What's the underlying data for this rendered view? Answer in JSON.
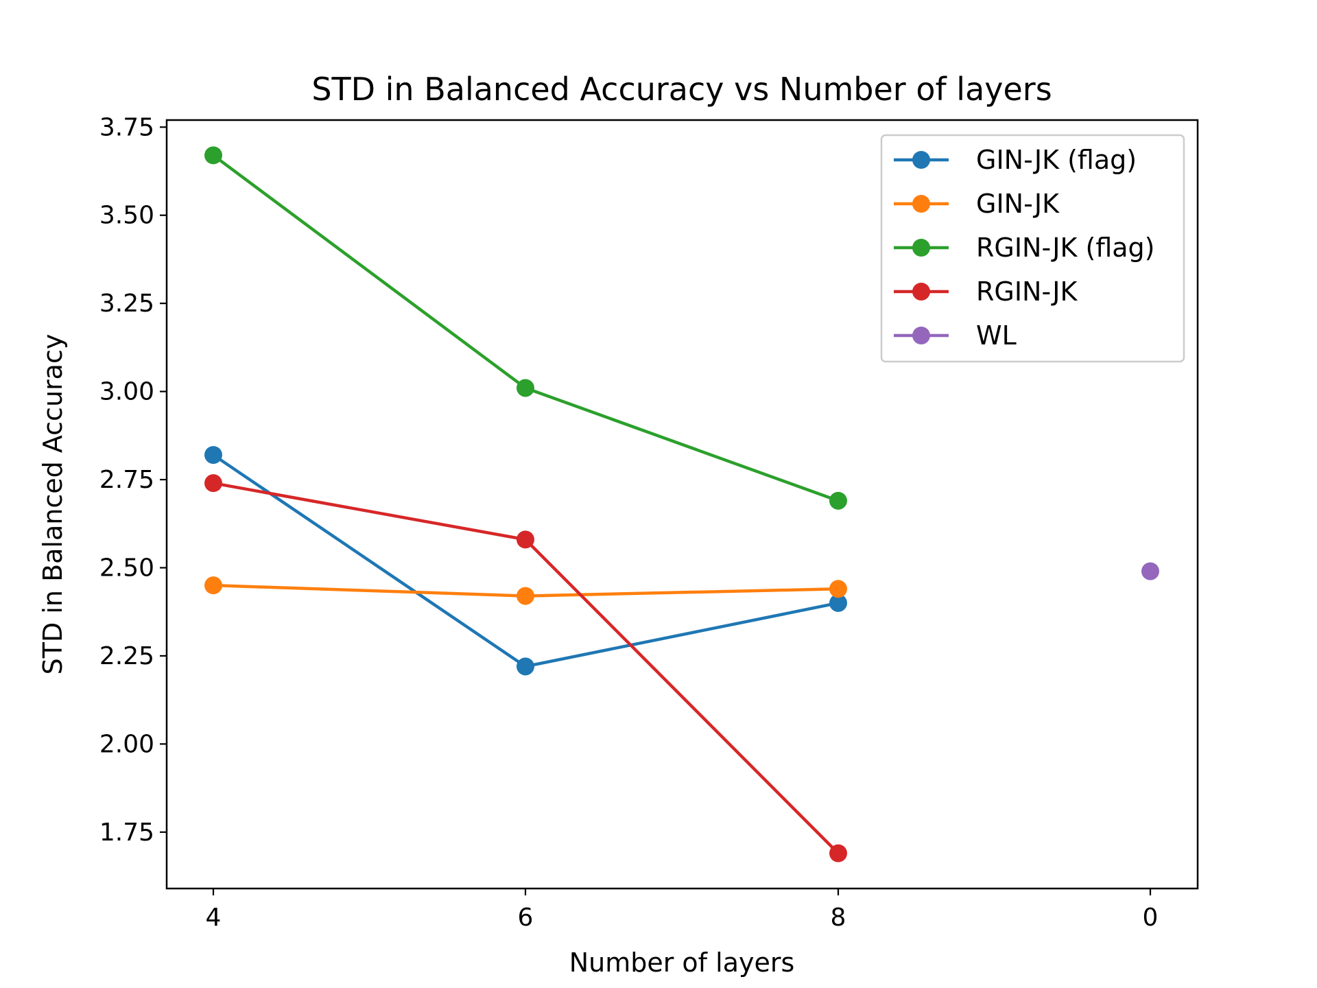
{
  "chart_data": {
    "type": "line",
    "title": "STD in Balanced Accuracy vs Number of layers",
    "xlabel": "Number of layers",
    "ylabel": "STD in Balanced Accuracy",
    "categories": [
      "4",
      "6",
      "8",
      "0"
    ],
    "ylim": [
      1.59,
      3.77
    ],
    "yticks": [
      "1.75",
      "2.00",
      "2.25",
      "2.50",
      "2.75",
      "3.00",
      "3.25",
      "3.50",
      "3.75"
    ],
    "legend_position": "upper right",
    "grid": false,
    "series": [
      {
        "name": "GIN-JK (flag)",
        "color": "#1f77b4",
        "values": [
          2.82,
          2.22,
          2.4,
          null
        ]
      },
      {
        "name": "GIN-JK",
        "color": "#ff7f0e",
        "values": [
          2.45,
          2.42,
          2.44,
          null
        ]
      },
      {
        "name": "RGIN-JK (flag)",
        "color": "#2ca02c",
        "values": [
          3.67,
          3.01,
          2.69,
          null
        ]
      },
      {
        "name": "RGIN-JK",
        "color": "#d62728",
        "values": [
          2.74,
          2.58,
          1.69,
          null
        ]
      },
      {
        "name": "WL",
        "color": "#9467bd",
        "values": [
          null,
          null,
          null,
          2.49
        ]
      }
    ]
  }
}
